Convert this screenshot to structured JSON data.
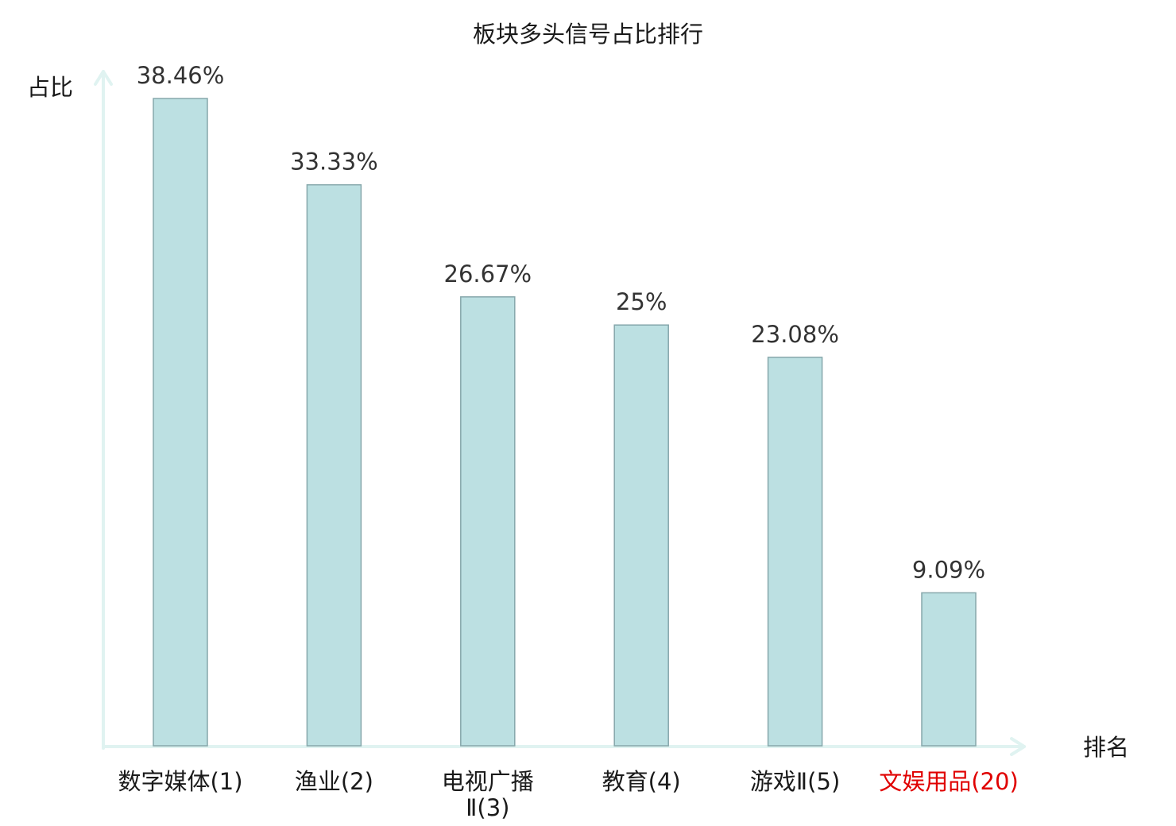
{
  "chart_data": {
    "type": "bar",
    "title": "板块多头信号占比排行",
    "xlabel": "排名",
    "ylabel": "占比",
    "categories": [
      [
        "数字媒体(1)"
      ],
      [
        "渔业(2)"
      ],
      [
        "电视广播",
        "Ⅱ(3)"
      ],
      [
        "教育(4)"
      ],
      [
        "游戏Ⅱ(5)"
      ],
      [
        "文娱用品(20)"
      ]
    ],
    "values": [
      38.46,
      33.33,
      26.67,
      25,
      23.08,
      9.09
    ],
    "value_labels": [
      "38.46%",
      "33.33%",
      "26.67%",
      "25%",
      "23.08%",
      "9.09%"
    ],
    "ylim": [
      0,
      38.46
    ],
    "grid": false,
    "legend": "none",
    "colors": {
      "bar_fill": "#bce0e2",
      "bar_stroke": "#86a7ab",
      "axis": "#e0f3f1",
      "label_default": "#1a1a1a",
      "label_highlight": "#e00000"
    },
    "highlight_index": 5
  }
}
